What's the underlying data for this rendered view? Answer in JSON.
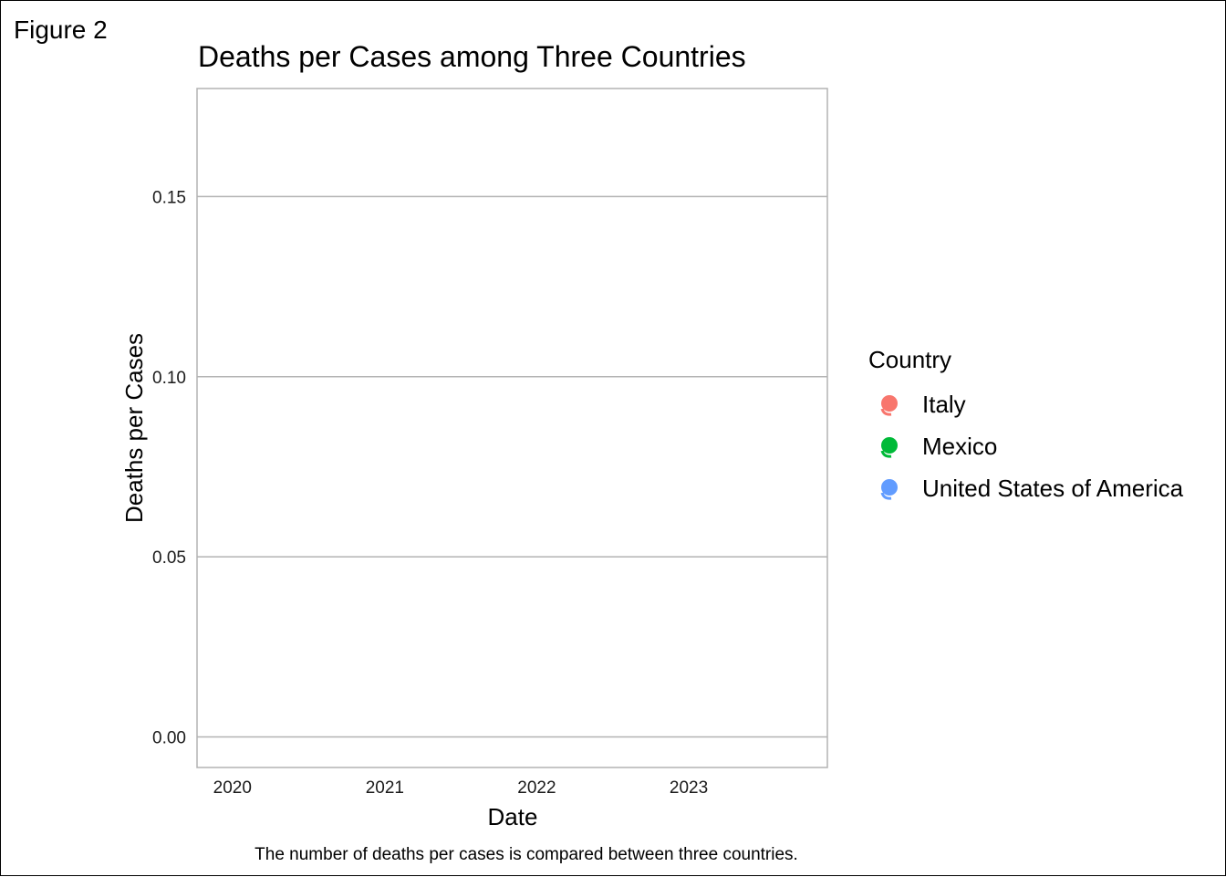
{
  "figure_label": "Figure 2",
  "chart_data": {
    "type": "scatter",
    "title": "Deaths per Cases among Three Countries",
    "xlabel": "Date",
    "ylabel": "Deaths per Cases",
    "caption": "The number of deaths per cases is compared between three countries.",
    "x_ticks": [
      "2020",
      "2021",
      "2022",
      "2023"
    ],
    "y_ticks": [
      "0.00",
      "0.05",
      "0.10",
      "0.15"
    ],
    "y_tick_values": [
      0,
      0.05,
      0.1,
      0.15
    ],
    "x_tick_values": [
      "2020-01-01",
      "2021-01-01",
      "2022-01-01",
      "2023-01-01"
    ],
    "xlim": [
      "2019-10-08",
      "2023-11-30"
    ],
    "ylim": [
      -0.0085,
      0.18
    ],
    "grid": "horizontal-major",
    "legend": {
      "title": "Country",
      "placement": "right"
    },
    "series": [
      {
        "name": "Italy",
        "color": "#F8766D",
        "points": []
      },
      {
        "name": "Mexico",
        "color": "#00BA38",
        "points": []
      },
      {
        "name": "United States of America",
        "color": "#619CFF",
        "points": []
      }
    ]
  }
}
